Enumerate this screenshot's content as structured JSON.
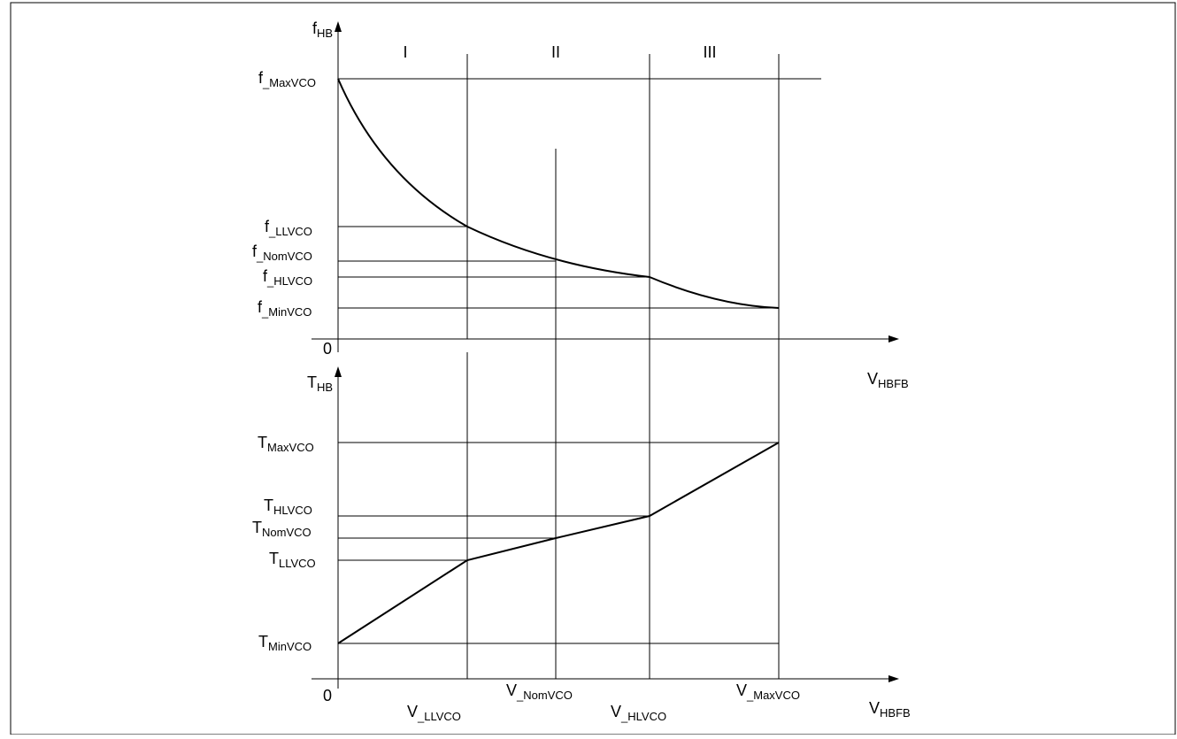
{
  "figure": {
    "regions": [
      "I",
      "II",
      "III"
    ],
    "top_plot": {
      "y_axis": {
        "main": "f",
        "sub": "HB"
      },
      "origin": "0",
      "x_axis": {
        "main": "V",
        "sub": "HBFB"
      },
      "levels": [
        {
          "id": "max",
          "main": "f",
          "sub": "_MaxVCO"
        },
        {
          "id": "ll",
          "main": "f",
          "sub": "_LLVCO"
        },
        {
          "id": "nom",
          "main": "f",
          "sub": "_NomVCO"
        },
        {
          "id": "hl",
          "main": "f",
          "sub": "_HLVCO"
        },
        {
          "id": "min",
          "main": "f",
          "sub": "_MinVCO"
        }
      ]
    },
    "bottom_plot": {
      "y_axis": {
        "main": "T",
        "sub": "HB"
      },
      "origin": "0",
      "x_axis": {
        "main": "V",
        "sub": "HBFB"
      },
      "levels": [
        {
          "id": "max",
          "main": "T",
          "sub": "MaxVCO"
        },
        {
          "id": "hl",
          "main": "T",
          "sub": "HLVCO"
        },
        {
          "id": "nom",
          "main": "T",
          "sub": "NomVCO"
        },
        {
          "id": "ll",
          "main": "T",
          "sub": "LLVCO"
        },
        {
          "id": "min",
          "main": "T",
          "sub": "MinVCO"
        }
      ],
      "x_ticks": [
        {
          "id": "ll",
          "main": "V",
          "sub": "_LLVCO"
        },
        {
          "id": "nom",
          "main": "V",
          "sub": "_NomVCO"
        },
        {
          "id": "hl",
          "main": "V",
          "sub": "_HLVCO"
        },
        {
          "id": "max",
          "main": "V",
          "sub": "_MaxVCO"
        }
      ]
    }
  }
}
